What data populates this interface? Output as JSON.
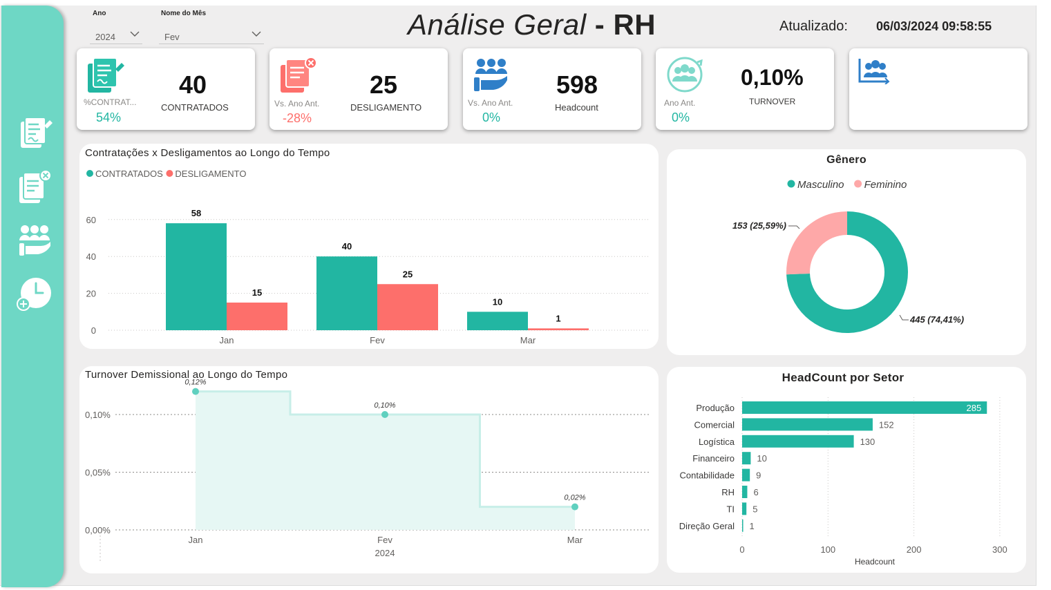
{
  "filters": {
    "year_label": "Ano",
    "year_value": "2024",
    "month_label": "Nome do Mês",
    "month_value": "Fev"
  },
  "header": {
    "title_part1": "Análise Geral",
    "title_sep": " - ",
    "title_part2": "RH",
    "updated_label": "Atualizado:",
    "updated_value": "06/03/2024 09:58:55"
  },
  "kpis": {
    "contratados": {
      "value": "40",
      "label": "CONTRATADOS",
      "sub": "%CONTRAT...",
      "pct": "54%"
    },
    "desligamento": {
      "value": "25",
      "label": "DESLIGAMENTO",
      "sub": "Vs. Ano Ant.",
      "pct": "-28%"
    },
    "headcount": {
      "value": "598",
      "label": "Headcount",
      "sub": "Vs. Ano Ant.",
      "pct": "0%"
    },
    "turnover": {
      "value": "0,10%",
      "label": "TURNOVER",
      "sub": "Ano Ant.",
      "pct": "0%"
    }
  },
  "colors": {
    "teal": "#22b6a2",
    "red": "#fd6f6b",
    "pink": "#fea8a8",
    "sidebar": "#6ed7c5",
    "icon_blue": "#2f7fc8"
  },
  "icons": [
    "contract-icon",
    "dismissal-icon",
    "people-icon",
    "people-cycle-icon",
    "people-chart-icon",
    "clock-add-icon"
  ],
  "chart_data": [
    {
      "type": "bar",
      "title": "Contratações x Desligamentos ao Longo do Tempo",
      "categories": [
        "Jan",
        "Fev",
        "Mar"
      ],
      "series": [
        {
          "name": "CONTRATADOS",
          "values": [
            58,
            40,
            10
          ],
          "color": "#22b6a2"
        },
        {
          "name": "DESLIGAMENTO",
          "values": [
            15,
            25,
            1
          ],
          "color": "#fd6f6b"
        }
      ],
      "yticks": [
        "0",
        "20",
        "40",
        "60"
      ],
      "ylim": [
        0,
        65
      ],
      "grid": true,
      "legend": "top-left"
    },
    {
      "type": "area",
      "title": "Turnover Demissional ao Longo do Tempo",
      "x": [
        "Jan",
        "Fev",
        "Mar"
      ],
      "x_group_label": "2024",
      "values": [
        0.12,
        0.1,
        0.02
      ],
      "point_labels": [
        "0,12%",
        "0,10%",
        "0,02%"
      ],
      "yticks": [
        "0,00%",
        "0,05%",
        "0,10%"
      ],
      "ylim": [
        0,
        0.125
      ],
      "step": true,
      "grid": true
    },
    {
      "type": "pie",
      "title": "Gênero",
      "donut": true,
      "slices": [
        {
          "name": "Masculino",
          "value": 445,
          "label": "445 (74,41%)",
          "color": "#22b6a2"
        },
        {
          "name": "Feminino",
          "value": 153,
          "label": "153 (25,59%)",
          "color": "#fea8a8"
        }
      ],
      "legend": "top-center"
    },
    {
      "type": "bar",
      "orientation": "horizontal",
      "title": "HeadCount por Setor",
      "categories": [
        "Produção",
        "Comercial",
        "Logística",
        "Financeiro",
        "Contabilidade",
        "RH",
        "TI",
        "Direção Geral"
      ],
      "values": [
        285,
        152,
        130,
        10,
        9,
        6,
        5,
        1
      ],
      "xlabel": "Headcount",
      "xticks": [
        "0",
        "100",
        "200",
        "300"
      ],
      "xlim": [
        0,
        300
      ],
      "grid": true
    }
  ]
}
